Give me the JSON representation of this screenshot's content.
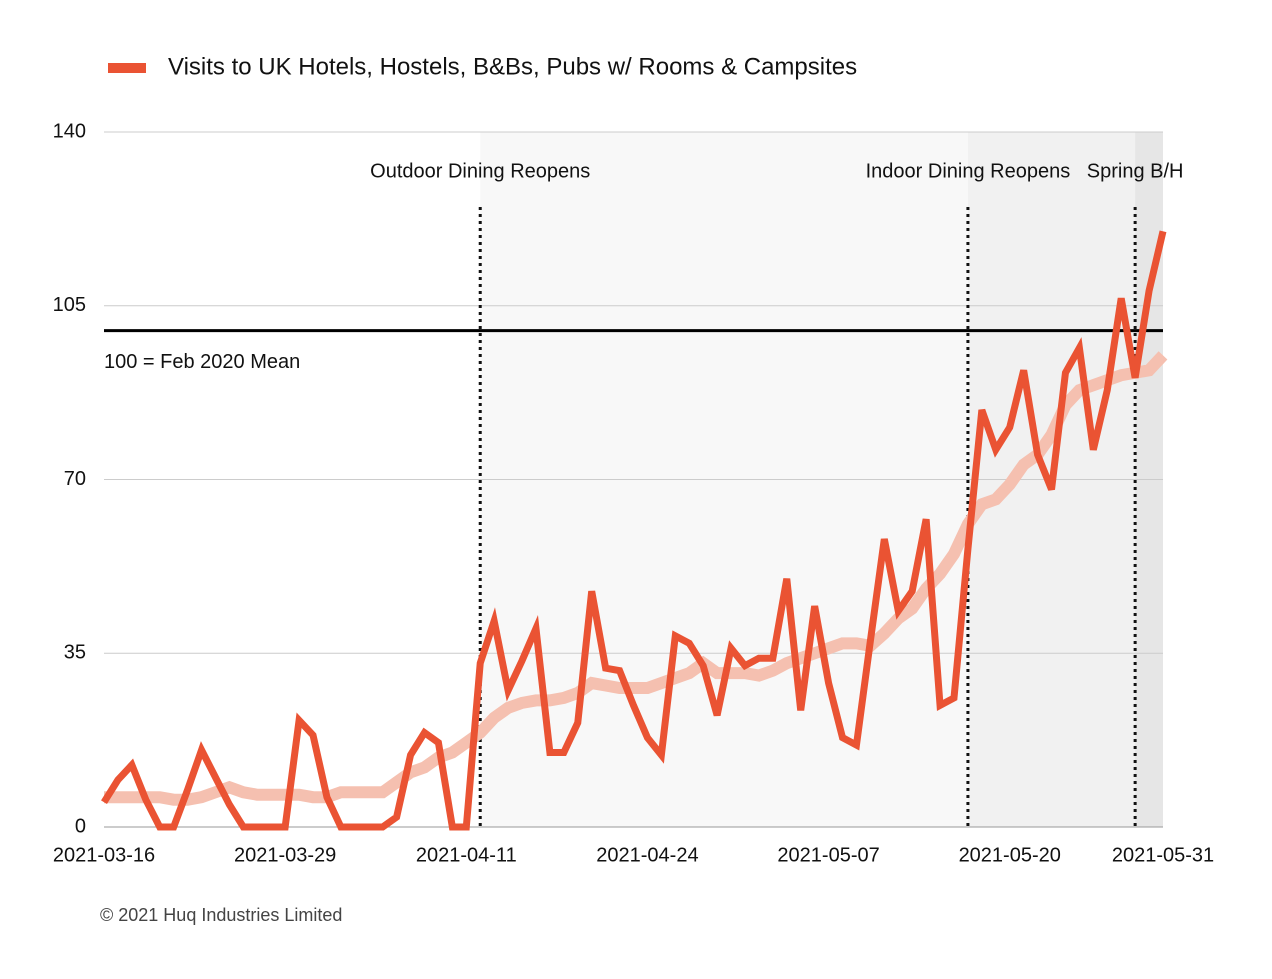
{
  "chart_data": {
    "type": "line",
    "legend": "top-left",
    "x": [
      "2021-03-16",
      "2021-03-17",
      "2021-03-18",
      "2021-03-19",
      "2021-03-20",
      "2021-03-21",
      "2021-03-22",
      "2021-03-23",
      "2021-03-24",
      "2021-03-25",
      "2021-03-26",
      "2021-03-27",
      "2021-03-28",
      "2021-03-29",
      "2021-03-30",
      "2021-03-31",
      "2021-04-01",
      "2021-04-02",
      "2021-04-03",
      "2021-04-04",
      "2021-04-05",
      "2021-04-06",
      "2021-04-07",
      "2021-04-08",
      "2021-04-09",
      "2021-04-10",
      "2021-04-11",
      "2021-04-12",
      "2021-04-13",
      "2021-04-14",
      "2021-04-15",
      "2021-04-16",
      "2021-04-17",
      "2021-04-18",
      "2021-04-19",
      "2021-04-20",
      "2021-04-21",
      "2021-04-22",
      "2021-04-23",
      "2021-04-24",
      "2021-04-25",
      "2021-04-26",
      "2021-04-27",
      "2021-04-28",
      "2021-04-29",
      "2021-04-30",
      "2021-05-01",
      "2021-05-02",
      "2021-05-03",
      "2021-05-04",
      "2021-05-05",
      "2021-05-06",
      "2021-05-07",
      "2021-05-08",
      "2021-05-09",
      "2021-05-10",
      "2021-05-11",
      "2021-05-12",
      "2021-05-13",
      "2021-05-14",
      "2021-05-15",
      "2021-05-16",
      "2021-05-17",
      "2021-05-18",
      "2021-05-19",
      "2021-05-20",
      "2021-05-21",
      "2021-05-22",
      "2021-05-23",
      "2021-05-24",
      "2021-05-25",
      "2021-05-26",
      "2021-05-27",
      "2021-05-28",
      "2021-05-29",
      "2021-05-30",
      "2021-05-31"
    ],
    "series": [
      {
        "color": "#f5c0b0",
        "values": [
          6,
          6,
          6,
          6,
          6,
          5.5,
          5.5,
          6,
          7,
          8,
          7,
          6.5,
          6.5,
          6.5,
          6.5,
          6,
          6,
          7,
          7,
          7,
          7,
          9,
          11,
          12,
          14,
          15,
          17,
          19,
          22,
          24,
          25,
          25.5,
          25.5,
          26,
          27,
          29,
          28.5,
          28,
          28,
          28,
          29,
          30,
          31,
          33,
          31,
          31,
          31,
          30.5,
          31.5,
          33,
          34,
          35,
          36,
          37,
          37,
          36.5,
          39,
          42,
          44,
          48,
          51,
          55,
          61,
          65,
          66,
          69,
          73,
          75,
          79,
          85,
          88,
          89,
          90,
          91,
          91.5,
          92,
          95
        ]
      },
      {
        "name": "Visits to UK Hotels, Hostels, B&Bs, Pubs w/ Rooms & Campsites",
        "color": "#ea5333",
        "values": [
          5,
          9.5,
          12.5,
          5.5,
          0,
          0,
          7.5,
          15.5,
          10,
          4.5,
          0,
          0,
          0,
          0,
          21.5,
          18.5,
          6,
          0,
          0,
          0,
          0,
          2,
          14.5,
          19,
          17,
          0,
          0,
          33,
          41.5,
          27.5,
          33.5,
          40,
          15,
          15,
          21,
          47.5,
          32,
          31.5,
          24.5,
          18,
          14.5,
          38.5,
          37,
          32.5,
          22.5,
          36,
          32.5,
          34,
          34,
          50,
          23.5,
          44.5,
          29,
          18,
          16.5,
          37.5,
          58,
          43.5,
          47.5,
          62,
          24.5,
          26,
          56,
          84,
          76,
          80.5,
          92,
          75,
          68,
          91.5,
          96.5,
          76,
          88,
          106.5,
          90.5,
          108,
          120
        ]
      }
    ],
    "xlim": [
      "2021-03-16",
      "2021-05-31"
    ],
    "xticks": [
      "2021-03-16",
      "2021-03-29",
      "2021-04-11",
      "2021-04-24",
      "2021-05-07",
      "2021-05-20",
      "2021-05-31"
    ],
    "ylim": [
      0,
      140
    ],
    "yticks": [
      0,
      35,
      70,
      105,
      140
    ],
    "grid": true,
    "reference_line": {
      "value": 100,
      "label": "100 = Feb 2020 Mean"
    },
    "annotations": [
      {
        "x": "2021-04-12",
        "label": "Outdoor Dining Reopens",
        "shade": "#f8f8f8"
      },
      {
        "x": "2021-05-17",
        "label": "Indoor Dining Reopens",
        "shade": "#f1f1f1"
      },
      {
        "x": "2021-05-29",
        "label": "Spring B/H",
        "shade": "#e6e6e6"
      }
    ],
    "footer": "© 2021 Huq Industries Limited"
  }
}
